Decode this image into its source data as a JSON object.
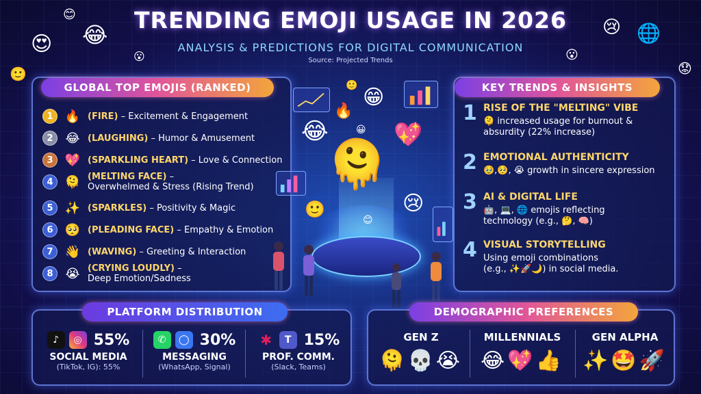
{
  "header": {
    "title": "TRENDING EMOJI USAGE IN 2026",
    "subtitle": "ANALYSIS & PREDICTIONS FOR DIGITAL COMMUNICATION",
    "source": "Source: Projected Trends"
  },
  "top_emojis": {
    "heading": "GLOBAL TOP EMOJIS (RANKED)",
    "items": [
      {
        "rank": "1",
        "emoji": "🔥",
        "name": "(FIRE)",
        "desc": " – Excitement & Engagement",
        "desc2": "",
        "badge_color": "#f0b323"
      },
      {
        "rank": "2",
        "emoji": "😂",
        "name": "(LAUGHING)",
        "desc": " – Humor & Amusement",
        "desc2": "",
        "badge_color": "#8a8fa8"
      },
      {
        "rank": "3",
        "emoji": "💖",
        "name": "(SPARKLING HEART)",
        "desc": " – Love & Connection",
        "desc2": "",
        "badge_color": "#c9743a"
      },
      {
        "rank": "4",
        "emoji": "🫠",
        "name": "(MELTING FACE)",
        "desc": " –",
        "desc2": "Overwhelmed & Stress (Rising Trend)",
        "badge_color": "#3d5fd6"
      },
      {
        "rank": "5",
        "emoji": "✨",
        "name": "(SPARKLES)",
        "desc": " – Positivity & Magic",
        "desc2": "",
        "badge_color": "#3d5fd6"
      },
      {
        "rank": "6",
        "emoji": "🥺",
        "name": "(PLEADING FACE)",
        "desc": " – Empathy & Emotion",
        "desc2": "",
        "badge_color": "#3d5fd6"
      },
      {
        "rank": "7",
        "emoji": "👋",
        "name": "(WAVING)",
        "desc": " – Greeting & Interaction",
        "desc2": "",
        "badge_color": "#3d5fd6"
      },
      {
        "rank": "8",
        "emoji": "😭",
        "name": "(CRYING LOUDLY)",
        "desc": " –",
        "desc2": "Deep Emotion/Sadness",
        "badge_color": "#3d5fd6"
      }
    ]
  },
  "trends": {
    "heading": "KEY TRENDS & INSIGHTS",
    "items": [
      {
        "num": "1",
        "title": "RISE OF THE \"MELTING\" VIBE",
        "line1": "🫠 increased usage for burnout &",
        "line2": "absurdity (22% increase)"
      },
      {
        "num": "2",
        "title": "EMOTIONAL AUTHENTICITY",
        "line1": "🥹,🥺, 😭 growth in sincere expression",
        "line2": ""
      },
      {
        "num": "3",
        "title": "AI & DIGITAL LIFE",
        "line1": "🤖, 💻, 🌐 emojis reflecting",
        "line2": "technology (e.g., 🤔, 🧠)"
      },
      {
        "num": "4",
        "title": "VISUAL STORYTELLING",
        "line1": "Using emoji combinations",
        "line2": "(e.g., ✨🚀🌙) in social media."
      }
    ]
  },
  "platforms": {
    "heading": "PLATFORM DISTRIBUTION",
    "items": [
      {
        "pct": "55%",
        "label": "SOCIAL MEDIA",
        "sub": "(TikTok, IG): 55%",
        "value": 55
      },
      {
        "pct": "30%",
        "label": "MESSAGING",
        "sub": "(WhatsApp, Signal)",
        "value": 30
      },
      {
        "pct": "15%",
        "label": "PROF. COMM.",
        "sub": "(Slack, Teams)",
        "value": 15
      }
    ]
  },
  "demographics": {
    "heading": "DEMOGRAPHIC PREFERENCES",
    "items": [
      {
        "label": "GEN Z",
        "emojis": "🫠💀😭"
      },
      {
        "label": "MILLENNIALS",
        "emojis": "😂💖👍"
      },
      {
        "label": "GEN ALPHA",
        "emojis": "✨🤩🚀"
      }
    ]
  },
  "decor": {
    "center_emoji": "🫠",
    "colors": {
      "accent_yellow": "#ffd66b",
      "panel_border": "#7896ff",
      "header_gradient_start": "#7b3fe4",
      "header_gradient_end": "#f3a53b"
    }
  }
}
